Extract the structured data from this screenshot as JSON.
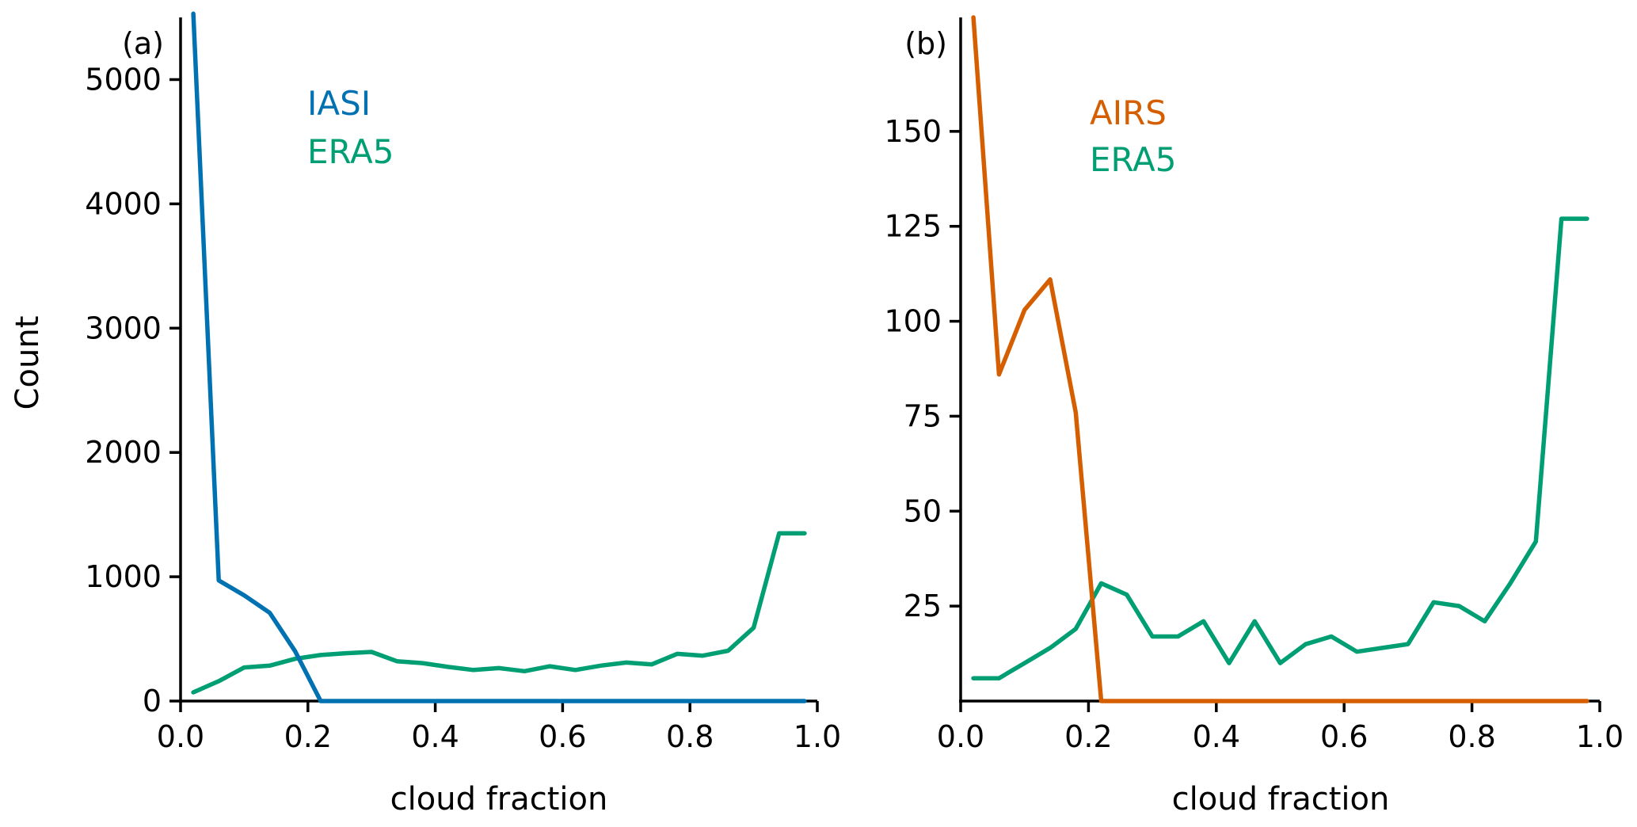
{
  "colors": {
    "iasi": "#0072b2",
    "airs": "#d55e00",
    "era5": "#009e73"
  },
  "chart_data": [
    {
      "type": "line",
      "panel_label": "(a)",
      "xlabel": "cloud fraction",
      "ylabel": "Count",
      "xlim": [
        0,
        1
      ],
      "ylim": [
        0,
        5500
      ],
      "xticks": [
        0.0,
        0.2,
        0.4,
        0.6,
        0.8,
        1.0
      ],
      "xtick_labels": [
        "0.0",
        "0.2",
        "0.4",
        "0.6",
        "0.8",
        "1.0"
      ],
      "yticks": [
        0,
        1000,
        2000,
        3000,
        4000,
        5000
      ],
      "ytick_labels": [
        "0",
        "1000",
        "2000",
        "3000",
        "4000",
        "5000"
      ],
      "legend": [
        "IASI",
        "ERA5"
      ],
      "legend_position": "upper-left",
      "x": [
        0.02,
        0.06,
        0.1,
        0.14,
        0.18,
        0.22,
        0.26,
        0.3,
        0.34,
        0.38,
        0.42,
        0.46,
        0.5,
        0.54,
        0.58,
        0.62,
        0.66,
        0.7,
        0.74,
        0.78,
        0.82,
        0.86,
        0.9,
        0.94,
        0.98
      ],
      "series": [
        {
          "name": "IASI",
          "color_key": "iasi",
          "values": [
            5530,
            970,
            850,
            710,
            400,
            0,
            0,
            0,
            0,
            0,
            0,
            0,
            0,
            0,
            0,
            0,
            0,
            0,
            0,
            0,
            0,
            0,
            0,
            0,
            0
          ]
        },
        {
          "name": "ERA5",
          "color_key": "era5",
          "values": [
            70,
            160,
            270,
            285,
            340,
            370,
            385,
            395,
            320,
            305,
            275,
            250,
            265,
            240,
            280,
            250,
            285,
            310,
            295,
            380,
            365,
            405,
            590,
            1350,
            1350
          ]
        }
      ]
    },
    {
      "type": "line",
      "panel_label": "(b)",
      "xlabel": "cloud fraction",
      "ylabel": "",
      "xlim": [
        0,
        1
      ],
      "ylim": [
        0,
        180
      ],
      "xticks": [
        0.0,
        0.2,
        0.4,
        0.6,
        0.8,
        1.0
      ],
      "xtick_labels": [
        "0.0",
        "0.2",
        "0.4",
        "0.6",
        "0.8",
        "1.0"
      ],
      "yticks": [
        25,
        50,
        75,
        100,
        125,
        150
      ],
      "ytick_labels": [
        "25",
        "50",
        "75",
        "100",
        "125",
        "150"
      ],
      "legend": [
        "AIRS",
        "ERA5"
      ],
      "legend_position": "upper-center",
      "x": [
        0.02,
        0.06,
        0.1,
        0.14,
        0.18,
        0.22,
        0.26,
        0.3,
        0.34,
        0.38,
        0.42,
        0.46,
        0.5,
        0.54,
        0.58,
        0.62,
        0.66,
        0.7,
        0.74,
        0.78,
        0.82,
        0.86,
        0.9,
        0.94,
        0.98
      ],
      "series": [
        {
          "name": "AIRS",
          "color_key": "airs",
          "values": [
            180,
            86,
            103,
            111,
            76,
            0,
            0,
            0,
            0,
            0,
            0,
            0,
            0,
            0,
            0,
            0,
            0,
            0,
            0,
            0,
            0,
            0,
            0,
            0,
            0
          ]
        },
        {
          "name": "ERA5",
          "color_key": "era5",
          "values": [
            6,
            6,
            10,
            14,
            19,
            31,
            28,
            17,
            17,
            21,
            10,
            21,
            10,
            15,
            17,
            13,
            14,
            15,
            26,
            25,
            21,
            31,
            42,
            127,
            127
          ]
        }
      ]
    }
  ]
}
